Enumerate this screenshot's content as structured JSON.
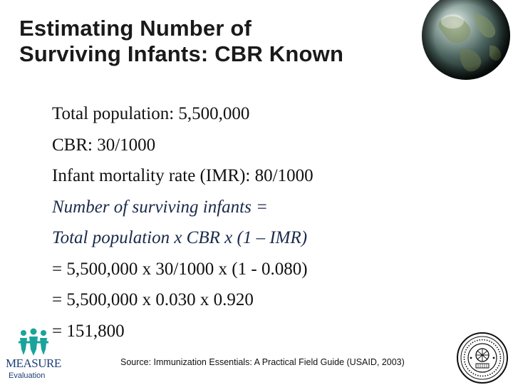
{
  "slide": {
    "title_lines": [
      "Estimating Number of",
      "Surviving Infants: CBR Known"
    ],
    "body_lines": [
      "Total population: 5,500,000",
      "CBR: 30/1000",
      "Infant mortality rate (IMR): 80/1000",
      "Number of surviving infants =",
      "Total population x CBR x (1 – IMR)",
      "= 5,500,000 x 30/1000 x (1 - 0.080)",
      "= 5,500,000 x 0.030 x 0.920",
      "= 151,800"
    ],
    "source": "Source: Immunization Essentials: A Practical Field Guide (USAID, 2003)"
  },
  "logos": {
    "measure_word": "MEASURE",
    "measure_sub": "Evaluation",
    "globe_icon": "globe-icon",
    "seal_icon": "usaid-seal-icon",
    "people_icon": "people-icon"
  },
  "colors": {
    "title": "#1a1a1a",
    "body_text": "#111111",
    "emphasis_text": "#1a2a4a",
    "measure_teal": "#1aa39a",
    "measure_blue": "#1d3f78",
    "background": "#ffffff"
  }
}
